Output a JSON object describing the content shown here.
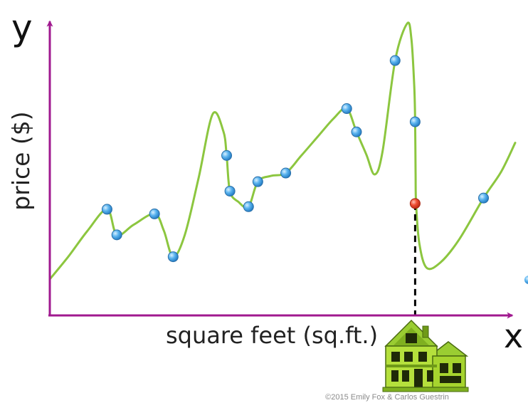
{
  "chart_data": {
    "type": "scatter",
    "title": "",
    "xlabel": "square feet (sq.ft.)",
    "ylabel": "price ($)",
    "x_axis_letter": "x",
    "y_axis_letter": "y",
    "xlim": [
      0,
      100
    ],
    "ylim": [
      0,
      100
    ],
    "grid": false,
    "legend": "none",
    "series": [
      {
        "kind": "observations",
        "marker_color": "#4aa8e8",
        "points": [
          {
            "x": 12.3,
            "y": 36.9
          },
          {
            "x": 14.4,
            "y": 28.0
          },
          {
            "x": 22.5,
            "y": 35.3
          },
          {
            "x": 26.5,
            "y": 20.4
          },
          {
            "x": 38.0,
            "y": 55.6
          },
          {
            "x": 38.7,
            "y": 43.2
          },
          {
            "x": 42.7,
            "y": 37.8
          },
          {
            "x": 44.7,
            "y": 46.5
          },
          {
            "x": 50.7,
            "y": 49.5
          },
          {
            "x": 63.8,
            "y": 71.9
          },
          {
            "x": 65.9,
            "y": 63.8
          },
          {
            "x": 74.2,
            "y": 88.6
          },
          {
            "x": 78.5,
            "y": 67.3
          },
          {
            "x": 93.2,
            "y": 40.8
          }
        ]
      },
      {
        "kind": "prediction",
        "marker_color": "#e8442c",
        "points": [
          {
            "x": 78.5,
            "y": 38.9
          }
        ],
        "projection_line": "dashed-vertical-to-x-axis"
      }
    ],
    "fit_curve": {
      "color": "#8cc63f",
      "points": [
        [
          0,
          12.6
        ],
        [
          4,
          20.5
        ],
        [
          8,
          29.2
        ],
        [
          12.3,
          36.9
        ],
        [
          14.4,
          28.0
        ],
        [
          18,
          31.5
        ],
        [
          22.5,
          35.3
        ],
        [
          24.5,
          29.5
        ],
        [
          26.5,
          20.4
        ],
        [
          29,
          28
        ],
        [
          32,
          48
        ],
        [
          35,
          70.0
        ],
        [
          37.3,
          64
        ],
        [
          38.0,
          55.6
        ],
        [
          38.7,
          43.2
        ],
        [
          40.5,
          39.5
        ],
        [
          42.7,
          37.8
        ],
        [
          44.7,
          46.5
        ],
        [
          47.5,
          48.5
        ],
        [
          50.7,
          49.5
        ],
        [
          54,
          55.5
        ],
        [
          57.5,
          62
        ],
        [
          61,
          68.5
        ],
        [
          63.8,
          71.9
        ],
        [
          65.9,
          63.8
        ],
        [
          68,
          56
        ],
        [
          69.8,
          49.0
        ],
        [
          71.5,
          57
        ],
        [
          74.2,
          88.6
        ],
        [
          76.8,
          101.5
        ],
        [
          77.7,
          96
        ],
        [
          78.3,
          80
        ],
        [
          78.5,
          67.3
        ],
        [
          78.6,
          50
        ],
        [
          78.7,
          38.9
        ],
        [
          79.4,
          25
        ],
        [
          81,
          16.5
        ],
        [
          84,
          18.5
        ],
        [
          88,
          26.5
        ],
        [
          93.2,
          40.8
        ],
        [
          97,
          50
        ],
        [
          100,
          60.0
        ]
      ]
    }
  },
  "copyright": "©2015 Emily Fox & Carlos Guestrin",
  "icon": "house-icon"
}
